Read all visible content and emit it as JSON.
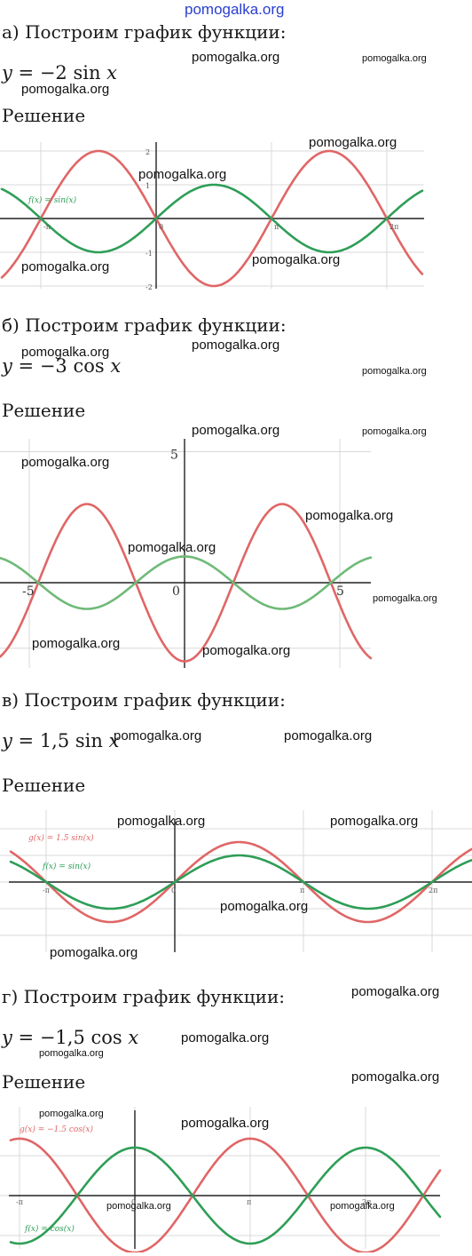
{
  "site": "pomogalka.org",
  "watermark": "pomogalka.org",
  "colors": {
    "red": "#e06666",
    "green": "#2e9e57",
    "green_light": "#6fba78",
    "axis": "#222222",
    "grid": "#d8d8d8",
    "site_link": "#2a3fd0"
  },
  "solution_label": "Решение",
  "parts": {
    "a": {
      "heading": "а) Построим график функции:",
      "formula": {
        "lhs": "y",
        "rest": " = −2 sin ",
        "arg": "x"
      },
      "graph": {
        "labels": [
          "f(x) = sin(x)"
        ],
        "ticks_x": [
          "-π",
          "0",
          "π",
          "2π"
        ],
        "ticks_y": [
          "2",
          "1",
          "-1",
          "-2"
        ]
      }
    },
    "b": {
      "heading": "б) Построим график функции:",
      "formula": {
        "lhs": "y",
        "rest": " = −3 cos ",
        "arg": "x"
      },
      "graph": {
        "ticks_x": [
          "-5",
          "0",
          "5"
        ],
        "ticks_y": [
          "5"
        ]
      }
    },
    "c": {
      "heading": "в) Построим график функции:",
      "formula": {
        "lhs": "y",
        "rest": " = 1,5 sin ",
        "arg": "x"
      },
      "graph": {
        "labels": [
          "g(x) = 1.5 sin(x)",
          "f(x) = sin(x)"
        ],
        "ticks_x": [
          "-π",
          "0",
          "π",
          "2π"
        ]
      }
    },
    "d": {
      "heading": "г) Построим график функции:",
      "formula": {
        "lhs": "y",
        "rest": " = −1,5 cos ",
        "arg": "x"
      },
      "graph": {
        "labels": [
          "g(x) = −1.5 cos(x)",
          "f(x) = cos(x)"
        ],
        "ticks_x": [
          "-π",
          "0",
          "π",
          "2π"
        ]
      }
    }
  }
}
